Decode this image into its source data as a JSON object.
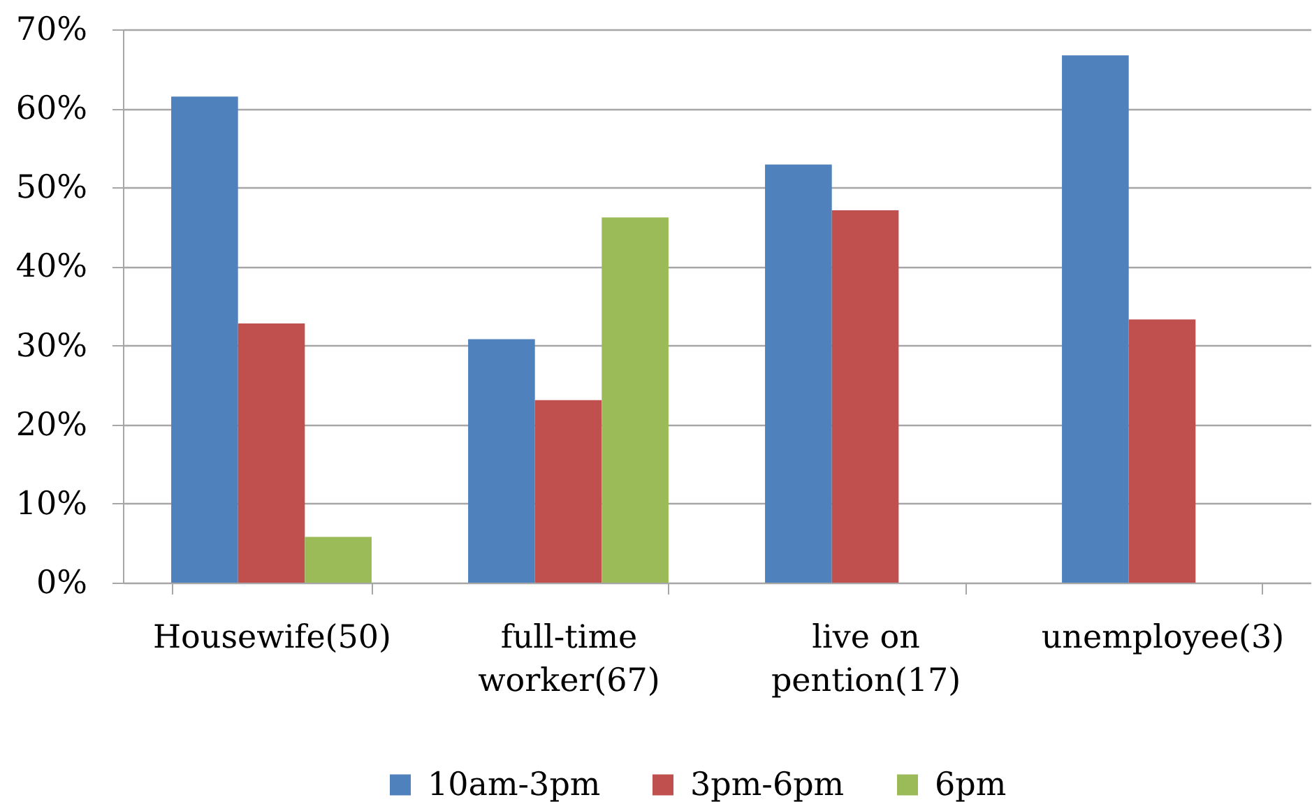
{
  "chart_data": {
    "type": "bar",
    "categories": [
      "Housewife(50)",
      "full-time\nworker(67)",
      "live on\npention(17)",
      "unemployee(3)"
    ],
    "series": [
      {
        "name": "10am-3pm",
        "color": "#4f81bd",
        "values": [
          61.5,
          30.8,
          52.9,
          66.7
        ]
      },
      {
        "name": "3pm-6pm",
        "color": "#c0504d",
        "values": [
          32.8,
          23.1,
          47.1,
          33.3
        ]
      },
      {
        "name": "6pm",
        "color": "#9bbb59",
        "values": [
          5.8,
          46.2,
          null,
          null
        ]
      }
    ],
    "ylim": [
      0,
      70
    ],
    "yticks": [
      {
        "value": 0,
        "label": "0%"
      },
      {
        "value": 10,
        "label": "10%"
      },
      {
        "value": 20,
        "label": "20%"
      },
      {
        "value": 30,
        "label": "30%"
      },
      {
        "value": 40,
        "label": "40%"
      },
      {
        "value": 50,
        "label": "50%"
      },
      {
        "value": 60,
        "label": "60%"
      },
      {
        "value": 70,
        "label": "70%"
      }
    ],
    "grid": "y",
    "legend": "bottom"
  }
}
